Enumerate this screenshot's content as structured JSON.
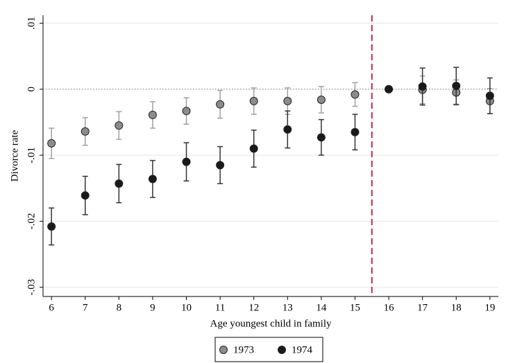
{
  "chart_data": {
    "type": "scatter",
    "x_label": "Age youngest child in family",
    "y_label": "Divorce rate",
    "xlim": [
      5.75,
      19.25
    ],
    "ylim": [
      -0.0314,
      0.0112
    ],
    "xticks": [
      6,
      7,
      8,
      9,
      10,
      11,
      12,
      13,
      14,
      15,
      16,
      17,
      18,
      19
    ],
    "yticks": [
      {
        "value": 0.01,
        "label": ".01"
      },
      0,
      {
        "value": -0.01,
        "label": "-.01"
      },
      {
        "value": -0.02,
        "label": "-.02"
      },
      {
        "value": -0.03,
        "label": "-.03"
      }
    ],
    "grid": true,
    "hline": 0,
    "vline": 15.5,
    "vline_color": "#c8234a",
    "x": [
      6,
      7,
      8,
      9,
      10,
      11,
      12,
      13,
      14,
      15,
      16,
      17,
      18,
      19
    ],
    "series": [
      {
        "name": "1973",
        "color": "#8c8c8c",
        "error_color": "#a0a0a0",
        "values": [
          -0.0082,
          -0.0064,
          -0.0055,
          -0.0039,
          -0.0033,
          -0.0023,
          -0.0018,
          -0.0018,
          -0.0016,
          -0.0008,
          0,
          -0.0001,
          -0.0005,
          -0.0018
        ],
        "errors": [
          0.0023,
          0.0021,
          0.0021,
          0.002,
          0.002,
          0.0021,
          0.002,
          0.002,
          0.002,
          0.0018,
          0,
          0.0021,
          0.0019,
          0.0019
        ]
      },
      {
        "name": "1974",
        "color": "#1a1a1a",
        "error_color": "#333333",
        "values": [
          -0.0208,
          -0.0161,
          -0.0143,
          -0.0136,
          -0.011,
          -0.0115,
          -0.009,
          -0.0061,
          -0.0073,
          -0.0065,
          0,
          0.0004,
          0.0005,
          -0.001
        ],
        "errors": [
          0.0028,
          0.0029,
          0.0029,
          0.0028,
          0.0029,
          0.0028,
          0.0028,
          0.0028,
          0.0027,
          0.0027,
          0,
          0.0028,
          0.0028,
          0.0027
        ]
      }
    ]
  }
}
